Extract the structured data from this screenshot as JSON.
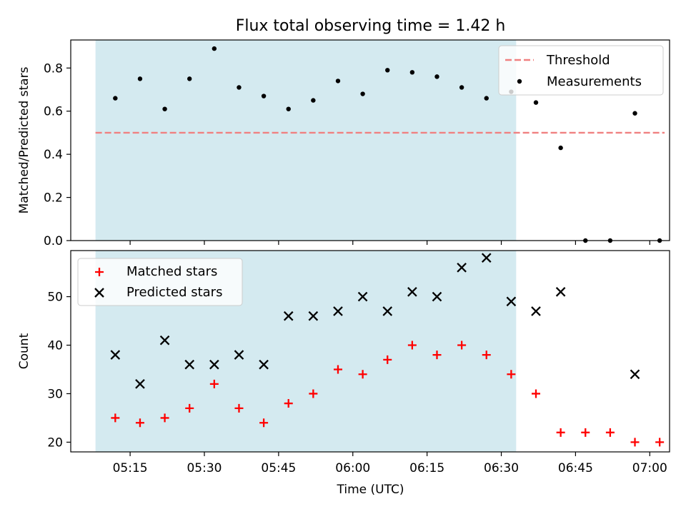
{
  "chart_data": {
    "title": "Flux total observing time = 1.42 h",
    "xlabel": "Time (UTC)",
    "x_ticks": [
      "05:15",
      "05:30",
      "05:45",
      "06:00",
      "06:15",
      "06:30",
      "06:45",
      "07:00"
    ],
    "x_tick_minutes": [
      315,
      330,
      345,
      360,
      375,
      390,
      405,
      420
    ],
    "xlim_minutes": [
      303,
      424
    ],
    "shaded_region_minutes": [
      308,
      393
    ],
    "colors": {
      "shade": "#d4eaf0",
      "threshold": "#f08080",
      "matched": "#ff0000",
      "predicted": "#000000",
      "measurement": "#000000"
    },
    "panels": [
      {
        "type": "scatter",
        "ylabel": "Matched/Predicted stars",
        "ylim": [
          0,
          0.93
        ],
        "y_ticks": [
          0.0,
          0.2,
          0.4,
          0.6,
          0.8
        ],
        "y_tick_labels": [
          "0.0",
          "0.2",
          "0.4",
          "0.6",
          "0.8"
        ],
        "threshold": {
          "name": "Threshold",
          "value": 0.5,
          "x_range_minutes": [
            308,
            423
          ]
        },
        "legend": {
          "placement": "top-right",
          "entries": [
            "Threshold",
            "Measurements"
          ]
        },
        "series": [
          {
            "name": "Measurements",
            "marker": "dot",
            "x": [
              "05:12",
              "05:17",
              "05:22",
              "05:27",
              "05:32",
              "05:37",
              "05:42",
              "05:47",
              "05:52",
              "05:57",
              "06:02",
              "06:07",
              "06:12",
              "06:17",
              "06:22",
              "06:27",
              "06:32",
              "06:37",
              "06:42",
              "06:47",
              "06:52",
              "06:57",
              "07:02"
            ],
            "values": [
              0.66,
              0.75,
              0.61,
              0.75,
              0.89,
              0.71,
              0.67,
              0.61,
              0.65,
              0.74,
              0.68,
              0.79,
              0.78,
              0.76,
              0.71,
              0.66,
              0.69,
              0.64,
              0.43,
              0.0,
              0.0,
              0.59,
              0.0
            ]
          }
        ]
      },
      {
        "type": "scatter",
        "ylabel": "Count",
        "ylim": [
          18,
          59.5
        ],
        "y_ticks": [
          20,
          30,
          40,
          50
        ],
        "y_tick_labels": [
          "20",
          "30",
          "40",
          "50"
        ],
        "legend": {
          "placement": "top-left",
          "entries": [
            "Matched stars",
            "Predicted stars"
          ]
        },
        "series": [
          {
            "name": "Matched stars",
            "marker": "plus",
            "x": [
              "05:12",
              "05:17",
              "05:22",
              "05:27",
              "05:32",
              "05:37",
              "05:42",
              "05:47",
              "05:52",
              "05:57",
              "06:02",
              "06:07",
              "06:12",
              "06:17",
              "06:22",
              "06:27",
              "06:32",
              "06:37",
              "06:42",
              "06:47",
              "06:52",
              "06:57",
              "07:02"
            ],
            "values": [
              25,
              24,
              25,
              27,
              32,
              27,
              24,
              28,
              30,
              35,
              34,
              37,
              40,
              38,
              40,
              38,
              34,
              30,
              22,
              22,
              22,
              20,
              20
            ]
          },
          {
            "name": "Predicted stars",
            "marker": "x",
            "x": [
              "05:12",
              "05:17",
              "05:22",
              "05:27",
              "05:32",
              "05:37",
              "05:42",
              "05:47",
              "05:52",
              "05:57",
              "06:02",
              "06:07",
              "06:12",
              "06:17",
              "06:22",
              "06:27",
              "06:32",
              "06:37",
              "06:42",
              "06:57"
            ],
            "values": [
              38,
              32,
              41,
              36,
              36,
              38,
              36,
              46,
              46,
              47,
              50,
              47,
              51,
              50,
              56,
              58,
              49,
              47,
              51,
              34
            ]
          }
        ]
      }
    ]
  }
}
